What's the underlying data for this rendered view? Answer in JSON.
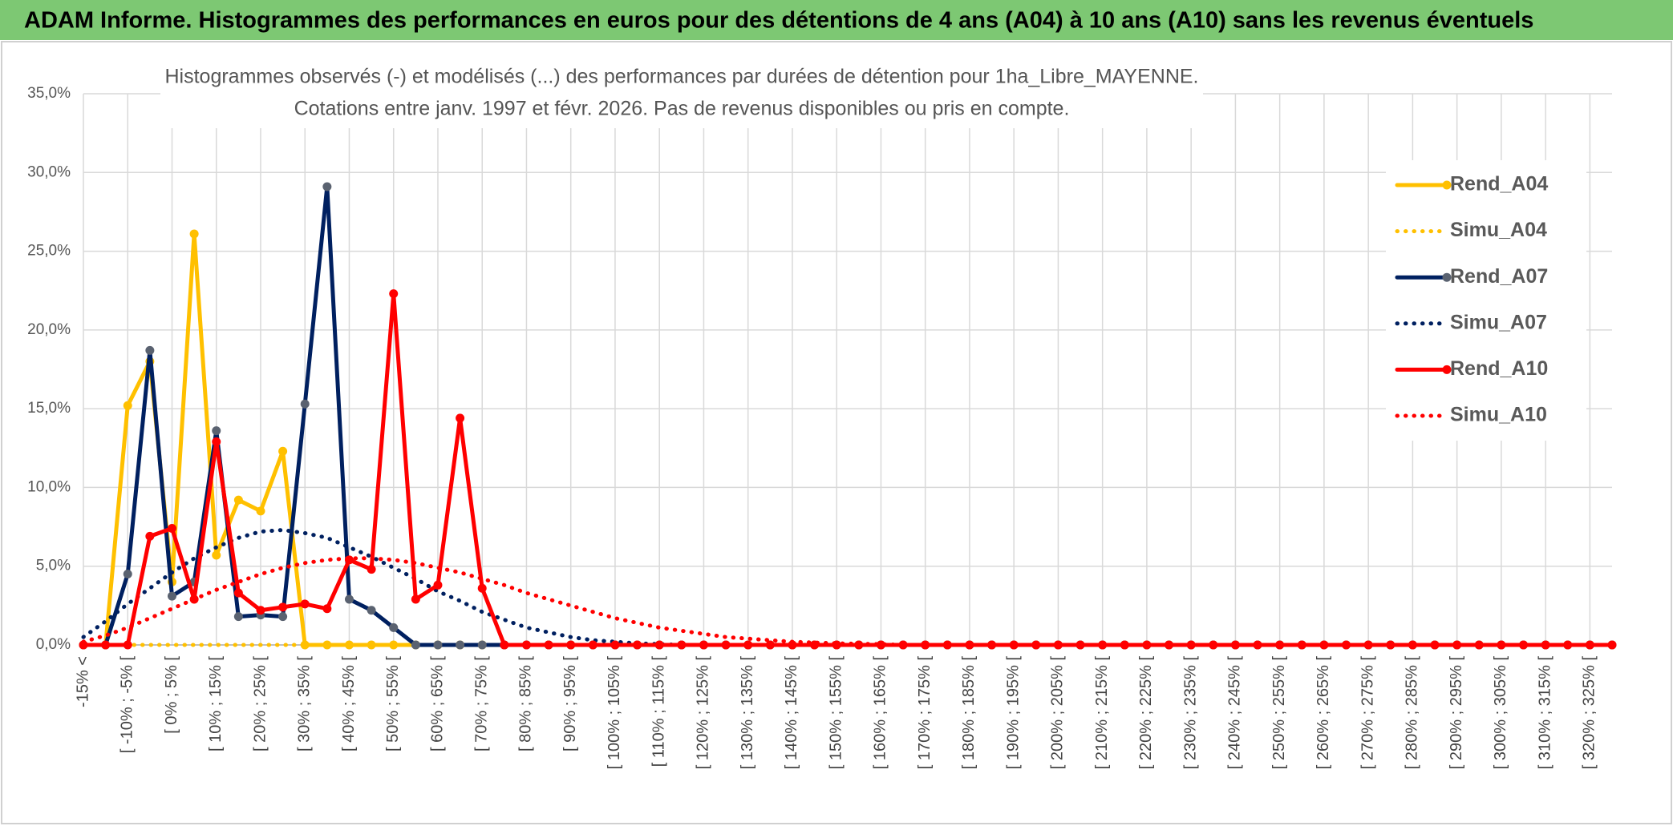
{
  "header": {
    "title": "ADAM Informe. Histogrammes des performances en euros pour des détentions de 4 ans (A04) à 10 ans (A10) sans les revenus éventuels"
  },
  "chart_data": {
    "type": "line",
    "title": "Histogrammes observés (-) et modélisés (...) des performances par durées de détention pour 1ha_Libre_MAYENNE.",
    "subtitle": "Cotations entre janv. 1997 et févr. 2026. Pas de revenus disponibles ou pris en compte.",
    "categories": [
      "-15% <",
      null,
      "[ -10% ; -5% [",
      null,
      "[ 0% ; 5% [",
      null,
      "[ 10% ; 15% [",
      null,
      "[ 20% ; 25% [",
      null,
      "[ 30% ; 35% [",
      null,
      "[ 40% ; 45% [",
      null,
      "[ 50% ; 55% [",
      null,
      "[ 60% ; 65% [",
      null,
      "[ 70% ; 75% [",
      null,
      "[ 80% ; 85% [",
      null,
      "[ 90% ; 95% [",
      null,
      "[ 100% ; 105% [",
      null,
      "[ 110% ; 115% [",
      null,
      "[ 120% ; 125% [",
      null,
      "[ 130% ; 135% [",
      null,
      "[ 140% ; 145% [",
      null,
      "[ 150% ; 155% [",
      null,
      "[ 160% ; 165% [",
      null,
      "[ 170% ; 175% [",
      null,
      "[ 180% ; 185% [",
      null,
      "[ 190% ; 195% [",
      null,
      "[ 200% ; 205% [",
      null,
      "[ 210% ; 215% [",
      null,
      "[ 220% ; 225% [",
      null,
      "[ 230% ; 235% [",
      null,
      "[ 240% ; 245% [",
      null,
      "[ 250% ; 255% [",
      null,
      "[ 260% ; 265% [",
      null,
      "[ 270% ; 275% [",
      null,
      "[ 280% ; 285% [",
      null,
      "[ 290% ; 295% [",
      null,
      "[ 300% ; 305% [",
      null,
      "[ 310% ; 315% [",
      null,
      "[ 320% ; 325% [",
      null
    ],
    "series": [
      {
        "name": "Rend_A04",
        "color": "#FFC000",
        "line_style": "solid",
        "marker_color": "#FFC000",
        "values": [
          0,
          0,
          15.2,
          18.0,
          4.0,
          26.1,
          5.7,
          9.2,
          8.5,
          12.3,
          0,
          0,
          0,
          0,
          0,
          0,
          0,
          0,
          0,
          0,
          0,
          0,
          0,
          0,
          0,
          0,
          0,
          0,
          0,
          0,
          0,
          0,
          0,
          0,
          0,
          0,
          0,
          0,
          0,
          0,
          0,
          0,
          0,
          0,
          0,
          0,
          0,
          0,
          0,
          0,
          0,
          0,
          0,
          0,
          0,
          0,
          0,
          0,
          0,
          0,
          0,
          0,
          0,
          0,
          0,
          0,
          0,
          0,
          0,
          0
        ]
      },
      {
        "name": "Simu_A04",
        "color": "#FFC000",
        "line_style": "dotted",
        "values": [
          0,
          0,
          0,
          0,
          0,
          0,
          0,
          0,
          0,
          0,
          0,
          0,
          0,
          0,
          0,
          0,
          0,
          0,
          0,
          0,
          0,
          0,
          0,
          0,
          0,
          0,
          0,
          0,
          0,
          0,
          0,
          0,
          0,
          0,
          0,
          0,
          0,
          0,
          0,
          0,
          0,
          0,
          0,
          0,
          0,
          0,
          0,
          0,
          0,
          0,
          0,
          0,
          0,
          0,
          0,
          0,
          0,
          0,
          0,
          0,
          0,
          0,
          0,
          0,
          0,
          0,
          0,
          0,
          0,
          0
        ]
      },
      {
        "name": "Rend_A07",
        "color": "#002060",
        "line_style": "solid",
        "marker_color": "#5A6270",
        "values": [
          0,
          0,
          4.5,
          18.7,
          3.1,
          4.0,
          13.6,
          1.8,
          1.9,
          1.8,
          15.3,
          29.1,
          2.9,
          2.2,
          1.1,
          0,
          0,
          0,
          0,
          0,
          0,
          0,
          0,
          0,
          0,
          0,
          0,
          0,
          0,
          0,
          0,
          0,
          0,
          0,
          0,
          0,
          0,
          0,
          0,
          0,
          0,
          0,
          0,
          0,
          0,
          0,
          0,
          0,
          0,
          0,
          0,
          0,
          0,
          0,
          0,
          0,
          0,
          0,
          0,
          0,
          0,
          0,
          0,
          0,
          0,
          0,
          0,
          0,
          0,
          0
        ]
      },
      {
        "name": "Simu_A07",
        "color": "#002060",
        "line_style": "dotted",
        "values": [
          0.5,
          1.5,
          2.6,
          3.6,
          4.6,
          5.5,
          6.2,
          6.8,
          7.2,
          7.3,
          7.1,
          6.8,
          6.2,
          5.6,
          4.9,
          4.2,
          3.4,
          2.8,
          2.1,
          1.6,
          1.1,
          0.8,
          0.5,
          0.3,
          0.2,
          0.1,
          0.05,
          0,
          0,
          0,
          0,
          0,
          0,
          0,
          0,
          0,
          0,
          0,
          0,
          0,
          0,
          0,
          0,
          0,
          0,
          0,
          0,
          0,
          0,
          0,
          0,
          0,
          0,
          0,
          0,
          0,
          0,
          0,
          0,
          0,
          0,
          0,
          0,
          0,
          0,
          0,
          0,
          0,
          0,
          0
        ]
      },
      {
        "name": "Rend_A10",
        "color": "#FF0000",
        "line_style": "solid",
        "marker_color": "#FF0000",
        "values": [
          0,
          0,
          0,
          6.9,
          7.4,
          2.9,
          12.9,
          3.3,
          2.2,
          2.4,
          2.6,
          2.3,
          5.4,
          4.8,
          22.3,
          2.9,
          3.8,
          14.4,
          3.6,
          0,
          0,
          0,
          0,
          0,
          0,
          0,
          0,
          0,
          0,
          0,
          0,
          0,
          0,
          0,
          0,
          0,
          0,
          0,
          0,
          0,
          0,
          0,
          0,
          0,
          0,
          0,
          0,
          0,
          0,
          0,
          0,
          0,
          0,
          0,
          0,
          0,
          0,
          0,
          0,
          0,
          0,
          0,
          0,
          0,
          0,
          0,
          0,
          0,
          0,
          0
        ]
      },
      {
        "name": "Simu_A10",
        "color": "#FF0000",
        "line_style": "dotted",
        "values": [
          0.2,
          0.6,
          1.1,
          1.7,
          2.3,
          2.9,
          3.5,
          4.0,
          4.5,
          4.9,
          5.2,
          5.4,
          5.5,
          5.5,
          5.4,
          5.2,
          4.9,
          4.6,
          4.2,
          3.8,
          3.3,
          2.9,
          2.5,
          2.1,
          1.7,
          1.4,
          1.1,
          0.9,
          0.7,
          0.5,
          0.4,
          0.3,
          0.2,
          0.15,
          0.1,
          0.07,
          0.05,
          0,
          0,
          0,
          0,
          0,
          0,
          0,
          0,
          0,
          0,
          0,
          0,
          0,
          0,
          0,
          0,
          0,
          0,
          0,
          0,
          0,
          0,
          0,
          0,
          0,
          0,
          0,
          0,
          0,
          0,
          0,
          0,
          0
        ]
      }
    ],
    "ylim": [
      0,
      35
    ],
    "yticks": [
      {
        "value": 0,
        "label": "0,0%"
      },
      {
        "value": 5,
        "label": "5,0%"
      },
      {
        "value": 10,
        "label": "10,0%"
      },
      {
        "value": 15,
        "label": "15,0%"
      },
      {
        "value": 20,
        "label": "20,0%"
      },
      {
        "value": 25,
        "label": "25,0%"
      },
      {
        "value": 30,
        "label": "30,0%"
      },
      {
        "value": 35,
        "label": "35,0%"
      }
    ],
    "grid": true,
    "legend": "right"
  }
}
